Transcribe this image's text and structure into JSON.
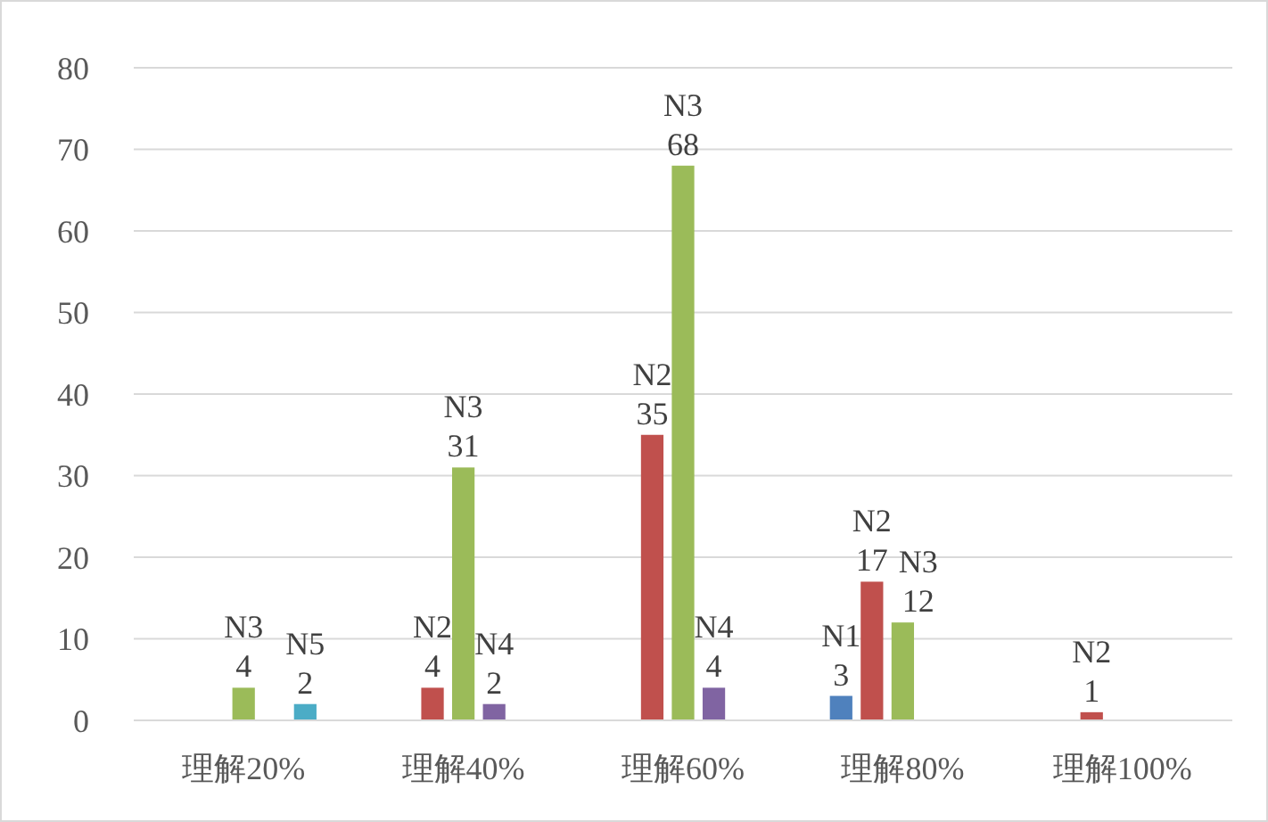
{
  "chart_data": {
    "type": "bar",
    "categories": [
      "理解20%",
      "理解40%",
      "理解60%",
      "理解80%",
      "理解100%"
    ],
    "series": [
      {
        "name": "N1",
        "color": "#4f81bd",
        "values": [
          null,
          null,
          null,
          3,
          null
        ]
      },
      {
        "name": "N2",
        "color": "#c0504d",
        "values": [
          null,
          4,
          35,
          17,
          1
        ]
      },
      {
        "name": "N3",
        "color": "#9bbb59",
        "values": [
          4,
          31,
          68,
          12,
          null
        ]
      },
      {
        "name": "N4",
        "color": "#8064a2",
        "values": [
          null,
          2,
          4,
          null,
          null
        ]
      },
      {
        "name": "N5",
        "color": "#4bacc6",
        "values": [
          2,
          null,
          null,
          null,
          null
        ]
      }
    ],
    "ylim": [
      0,
      80
    ],
    "yticks": [
      0,
      10,
      20,
      30,
      40,
      50,
      60,
      70,
      80
    ],
    "grid": "y",
    "data_labels": true
  }
}
